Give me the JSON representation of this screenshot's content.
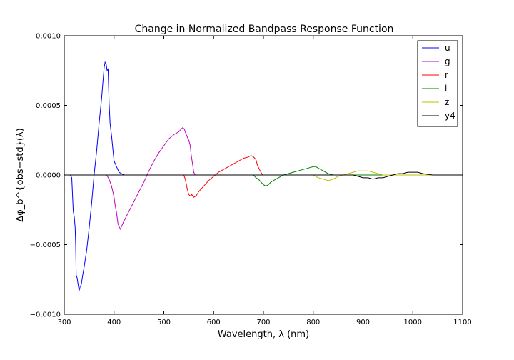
{
  "chart_data": {
    "type": "line",
    "title": "Change in Normalized Bandpass Response Function",
    "xlabel": "Wavelength, λ (nm)",
    "ylabel": "Δφ_b^{obs−std}(λ)",
    "xlim": [
      300,
      1100
    ],
    "ylim": [
      -0.001,
      0.001
    ],
    "x_ticks": [
      300,
      400,
      500,
      600,
      700,
      800,
      900,
      1000,
      1100
    ],
    "x_tick_labels": [
      "300",
      "400",
      "500",
      "600",
      "700",
      "800",
      "900",
      "1000",
      "1100"
    ],
    "y_ticks": [
      -0.001,
      -0.0005,
      0.0,
      0.0005,
      0.001
    ],
    "y_tick_labels": [
      "−0.0010",
      "−0.0005",
      "0.0000",
      "0.0005",
      "0.0010"
    ],
    "grid": false,
    "legend_position": "top-right",
    "series": [
      {
        "name": "u",
        "color": "#0000ff",
        "points": [
          [
            300,
            0
          ],
          [
            312,
            0
          ],
          [
            315,
            -2e-05
          ],
          [
            318,
            -0.00026
          ],
          [
            320,
            -0.0003
          ],
          [
            322,
            -0.00038
          ],
          [
            323,
            -0.0005
          ],
          [
            324,
            -0.00072
          ],
          [
            326,
            -0.00074
          ],
          [
            328,
            -0.00079
          ],
          [
            330,
            -0.00083
          ],
          [
            332,
            -0.0008
          ],
          [
            334,
            -0.00079
          ],
          [
            337,
            -0.00072
          ],
          [
            340,
            -0.00066
          ],
          [
            345,
            -0.00054
          ],
          [
            350,
            -0.00038
          ],
          [
            355,
            -0.0002
          ],
          [
            360,
            0.0
          ],
          [
            365,
            0.00017
          ],
          [
            370,
            0.00037
          ],
          [
            375,
            0.00055
          ],
          [
            380,
            0.00077
          ],
          [
            382,
            0.00081
          ],
          [
            384,
            0.0008
          ],
          [
            386,
            0.00075
          ],
          [
            388,
            0.00076
          ],
          [
            390,
            0.00052
          ],
          [
            392,
            0.00037
          ],
          [
            395,
            0.00028
          ],
          [
            398,
            0.00017
          ],
          [
            400,
            0.0001
          ],
          [
            405,
            6e-05
          ],
          [
            410,
            2e-05
          ],
          [
            415,
            1e-05
          ],
          [
            420,
            0.0
          ],
          [
            425,
            0.0
          ],
          [
            1100,
            0.0
          ]
        ]
      },
      {
        "name": "g",
        "color": "#bf00bf",
        "points": [
          [
            300,
            0
          ],
          [
            385,
            0
          ],
          [
            390,
            -3e-05
          ],
          [
            392,
            -5e-05
          ],
          [
            395,
            -8e-05
          ],
          [
            400,
            -0.00016
          ],
          [
            402,
            -0.00021
          ],
          [
            405,
            -0.00027
          ],
          [
            408,
            -0.00035
          ],
          [
            410,
            -0.00037
          ],
          [
            413,
            -0.00039
          ],
          [
            415,
            -0.00037
          ],
          [
            420,
            -0.00033
          ],
          [
            430,
            -0.00026
          ],
          [
            440,
            -0.00019
          ],
          [
            450,
            -0.00012
          ],
          [
            460,
            -5e-05
          ],
          [
            470,
            3e-05
          ],
          [
            480,
            0.0001
          ],
          [
            490,
            0.00016
          ],
          [
            500,
            0.00021
          ],
          [
            510,
            0.00026
          ],
          [
            520,
            0.00029
          ],
          [
            530,
            0.00031
          ],
          [
            535,
            0.00033
          ],
          [
            538,
            0.00034
          ],
          [
            541,
            0.00033
          ],
          [
            545,
            0.00029
          ],
          [
            550,
            0.00025
          ],
          [
            553,
            0.00021
          ],
          [
            555,
            0.00014
          ],
          [
            558,
            7e-05
          ],
          [
            560,
            2e-05
          ],
          [
            563,
            0.0
          ],
          [
            1100,
            0.0
          ]
        ]
      },
      {
        "name": "r",
        "color": "#ff0000",
        "points": [
          [
            300,
            0
          ],
          [
            540,
            0
          ],
          [
            543,
            -3e-05
          ],
          [
            547,
            -0.0001
          ],
          [
            550,
            -0.00014
          ],
          [
            553,
            -0.00015
          ],
          [
            556,
            -0.00014
          ],
          [
            560,
            -0.00016
          ],
          [
            565,
            -0.00015
          ],
          [
            570,
            -0.00012
          ],
          [
            580,
            -8e-05
          ],
          [
            590,
            -4e-05
          ],
          [
            600,
            -1e-05
          ],
          [
            610,
            2e-05
          ],
          [
            620,
            4e-05
          ],
          [
            630,
            6e-05
          ],
          [
            640,
            8e-05
          ],
          [
            650,
            0.0001
          ],
          [
            660,
            0.00012
          ],
          [
            670,
            0.00013
          ],
          [
            675,
            0.00014
          ],
          [
            680,
            0.00013
          ],
          [
            685,
            0.00011
          ],
          [
            688,
            7e-05
          ],
          [
            692,
            4e-05
          ],
          [
            695,
            2e-05
          ],
          [
            698,
            0.0
          ],
          [
            1100,
            0.0
          ]
        ]
      },
      {
        "name": "i",
        "color": "#007f00",
        "points": [
          [
            300,
            0
          ],
          [
            680,
            0
          ],
          [
            685,
            -2e-05
          ],
          [
            690,
            -3e-05
          ],
          [
            695,
            -5e-05
          ],
          [
            700,
            -7e-05
          ],
          [
            705,
            -8e-05
          ],
          [
            710,
            -7e-05
          ],
          [
            715,
            -5e-05
          ],
          [
            720,
            -4e-05
          ],
          [
            730,
            -2e-05
          ],
          [
            740,
            0.0
          ],
          [
            750,
            1e-05
          ],
          [
            760,
            2e-05
          ],
          [
            770,
            3e-05
          ],
          [
            780,
            4e-05
          ],
          [
            790,
            5e-05
          ],
          [
            800,
            6e-05
          ],
          [
            805,
            6e-05
          ],
          [
            810,
            5e-05
          ],
          [
            820,
            3e-05
          ],
          [
            830,
            1e-05
          ],
          [
            840,
            0.0
          ],
          [
            1100,
            0.0
          ]
        ]
      },
      {
        "name": "z",
        "color": "#bfbf00",
        "points": [
          [
            300,
            0
          ],
          [
            800,
            0
          ],
          [
            810,
            -2e-05
          ],
          [
            820,
            -3e-05
          ],
          [
            830,
            -4e-05
          ],
          [
            840,
            -3e-05
          ],
          [
            850,
            -1e-05
          ],
          [
            860,
            0.0
          ],
          [
            870,
            1e-05
          ],
          [
            880,
            2e-05
          ],
          [
            890,
            3e-05
          ],
          [
            900,
            3e-05
          ],
          [
            910,
            3e-05
          ],
          [
            920,
            2e-05
          ],
          [
            930,
            1e-05
          ],
          [
            940,
            0.0
          ],
          [
            1100,
            0.0
          ]
        ]
      },
      {
        "name": "y4",
        "color": "#000000",
        "points": [
          [
            300,
            0
          ],
          [
            880,
            0
          ],
          [
            890,
            -1e-05
          ],
          [
            900,
            -2e-05
          ],
          [
            910,
            -2e-05
          ],
          [
            920,
            -3e-05
          ],
          [
            930,
            -2e-05
          ],
          [
            940,
            -2e-05
          ],
          [
            950,
            -1e-05
          ],
          [
            960,
            0.0
          ],
          [
            970,
            1e-05
          ],
          [
            980,
            1e-05
          ],
          [
            990,
            2e-05
          ],
          [
            1000,
            2e-05
          ],
          [
            1010,
            2e-05
          ],
          [
            1020,
            1e-05
          ],
          [
            1040,
            0.0
          ],
          [
            1100,
            0.0
          ]
        ]
      }
    ]
  }
}
